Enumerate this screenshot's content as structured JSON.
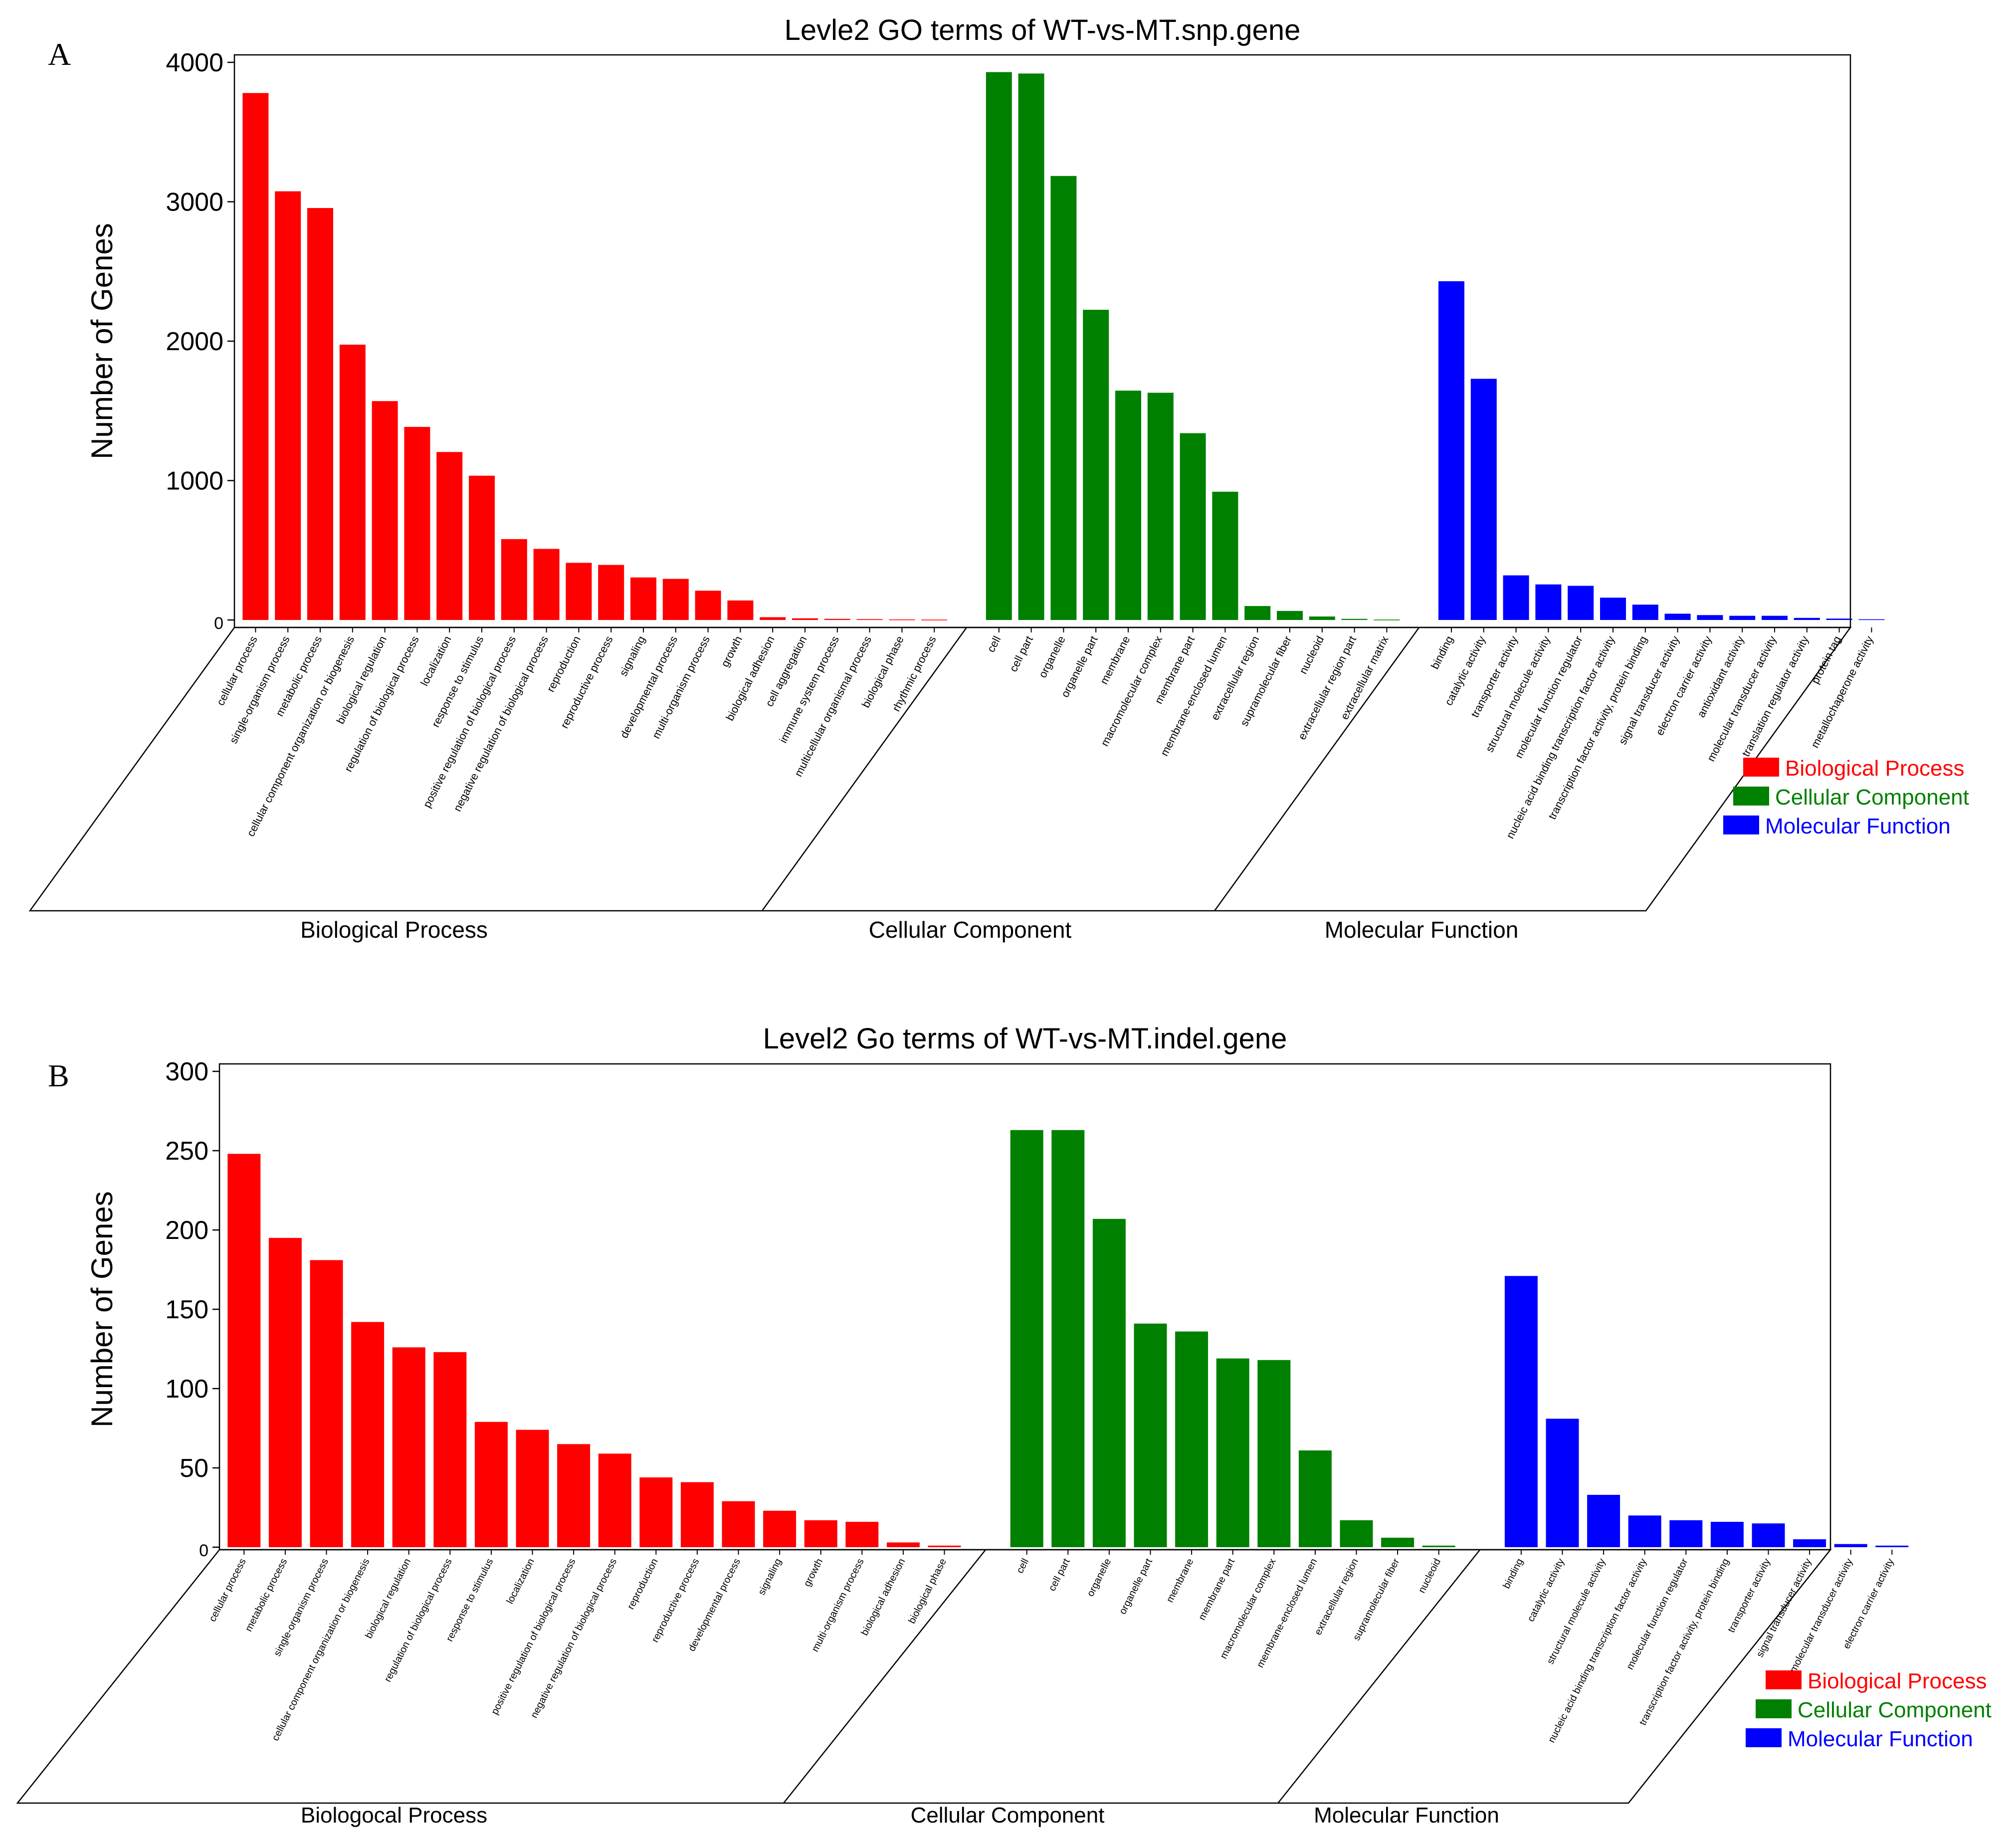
{
  "chart_data": [
    {
      "type": "bar",
      "panel": "A",
      "title": "Levle2 GO terms of WT-vs-MT.snp.gene",
      "xlabel": "",
      "ylabel": "Number of  Genes",
      "ylim": [
        0,
        4000
      ],
      "yticks": [
        0,
        1000,
        2000,
        3000,
        4000
      ],
      "legend": [
        {
          "name": "Biological Process",
          "color": "#ff0000"
        },
        {
          "name": "Cellular Component",
          "color": "#008000"
        },
        {
          "name": "Molecular Function",
          "color": "#0000ff"
        }
      ],
      "groups": [
        {
          "name": "Biological Process",
          "color": "#ff0000",
          "categories": [
            "cellular process",
            "single-organism process",
            "metabolic process",
            "cellular component organization or biogenesis",
            "biological regulation",
            "regulation of biological process",
            "localization",
            "response to stimulus",
            "positive regulation of biological process",
            "negative regulation of biological process",
            "reproduction",
            "reproductive process",
            "signaling",
            "developmental process",
            "multi-organism process",
            "growth",
            "biological adhesion",
            "cell aggregation",
            "immune system process",
            "multicellular organismal process",
            "biological phase",
            "rhythmic process"
          ],
          "values": [
            3780,
            3075,
            2955,
            1975,
            1570,
            1385,
            1205,
            1035,
            580,
            510,
            410,
            395,
            305,
            295,
            210,
            140,
            20,
            12,
            8,
            6,
            4,
            3
          ]
        },
        {
          "name": "Cellular Component",
          "color": "#008000",
          "categories": [
            "cell",
            "cell part",
            "organelle",
            "organelle part",
            "membrane",
            "macromolecular complex",
            "membrane part",
            "membrane-enclosed lumen",
            "extracellular region",
            "supramolecular fiber",
            "nucleoid",
            "extracellular region part",
            "extracellular matrix"
          ],
          "values": [
            3930,
            3920,
            3185,
            2225,
            1645,
            1630,
            1340,
            920,
            100,
            65,
            25,
            8,
            3
          ]
        },
        {
          "name": "Molecular Function",
          "color": "#0000ff",
          "categories": [
            "binding",
            "catalytic activity",
            "transporter activity",
            "structural molecule activity",
            "molecular function regulator",
            "nucleic acid binding transcription factor activity",
            "transcription factor activity, protein binding",
            "signal transducer activity",
            "electron carrier activity",
            "antioxidant activity",
            "molecular transducer activity",
            "translation regulator activity",
            "protein tag",
            "metallochaperone activity"
          ],
          "values": [
            2430,
            1730,
            320,
            255,
            245,
            160,
            110,
            45,
            35,
            30,
            30,
            15,
            10,
            5
          ]
        }
      ]
    },
    {
      "type": "bar",
      "panel": "B",
      "title": "Level2 Go terms of WT-vs-MT.indel.gene",
      "xlabel": "",
      "ylabel": "Number of Genes",
      "ylim": [
        0,
        300
      ],
      "yticks": [
        0,
        50,
        100,
        150,
        200,
        250,
        300
      ],
      "legend": [
        {
          "name": "Biological Process",
          "color": "#ff0000"
        },
        {
          "name": "Cellular Component",
          "color": "#008000"
        },
        {
          "name": "Molecular Function",
          "color": "#0000ff"
        }
      ],
      "groups": [
        {
          "name": "Biologocal Process",
          "color": "#ff0000",
          "categories": [
            "cellular process",
            "metabolic process",
            "single-organism process",
            "cellular component organization or biogenesis",
            "biological regulation",
            "regulation of biological process",
            "response to stimulus",
            "localization",
            "positive regulation of biological process",
            "negative regulation of biological process",
            "reproduction",
            "reproductive process",
            "developmental process",
            "signaling",
            "growth",
            "multi-organism process",
            "biological adhesion",
            "biological phase"
          ],
          "values": [
            248,
            195,
            181,
            142,
            126,
            123,
            79,
            74,
            65,
            59,
            44,
            41,
            29,
            23,
            17,
            16,
            3,
            1
          ]
        },
        {
          "name": "Cellular Component",
          "color": "#008000",
          "categories": [
            "cell",
            "cell part",
            "organelle",
            "organelle part",
            "membrane",
            "membrane part",
            "macromolecular complex",
            "membrane-enclosed lumen",
            "extracellular region",
            "supramolecular fiber",
            "nucleoid"
          ],
          "values": [
            263,
            263,
            207,
            141,
            136,
            119,
            118,
            61,
            17,
            6,
            1
          ]
        },
        {
          "name": "Molecular Function",
          "color": "#0000ff",
          "categories": [
            "binding",
            "catalytic activity",
            "structural molecule activity",
            "nucleic acid binding transcription factor activity",
            "molecular function regulator",
            "transcription factor activity, protein binding",
            "transporter activity",
            "signal transducer activity",
            "molecular transducer activity",
            "electron carrier activity"
          ],
          "values": [
            171,
            81,
            33,
            20,
            17,
            16,
            15,
            5,
            2,
            1
          ]
        }
      ]
    }
  ]
}
